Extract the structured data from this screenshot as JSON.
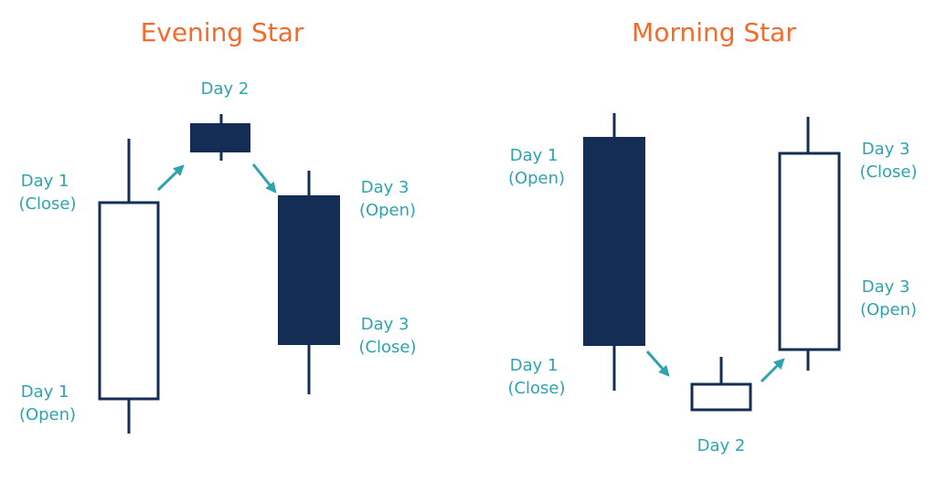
{
  "colors": {
    "title": "#f26b2c",
    "label": "#2ea3b0",
    "candle_dark": "#142d54",
    "candle_light": "#ffffff",
    "arrow": "#2ea3b0"
  },
  "patterns": [
    {
      "title": "Evening Star",
      "labels": {
        "day1_close": [
          "Day 1",
          "(Close)"
        ],
        "day1_open": [
          "Day 1",
          "(Open)"
        ],
        "day2": [
          "Day 2"
        ],
        "day3_open": [
          "Day 3",
          "(Open)"
        ],
        "day3_close": [
          "Day 3",
          "(Close)"
        ]
      }
    },
    {
      "title": "Morning Star",
      "labels": {
        "day1_open": [
          "Day 1",
          "(Open)"
        ],
        "day1_close": [
          "Day 1",
          "(Close)"
        ],
        "day2": [
          "Day 2"
        ],
        "day3_close": [
          "Day 3",
          "(Close)"
        ],
        "day3_open": [
          "Day 3",
          "(Open)"
        ]
      }
    }
  ]
}
